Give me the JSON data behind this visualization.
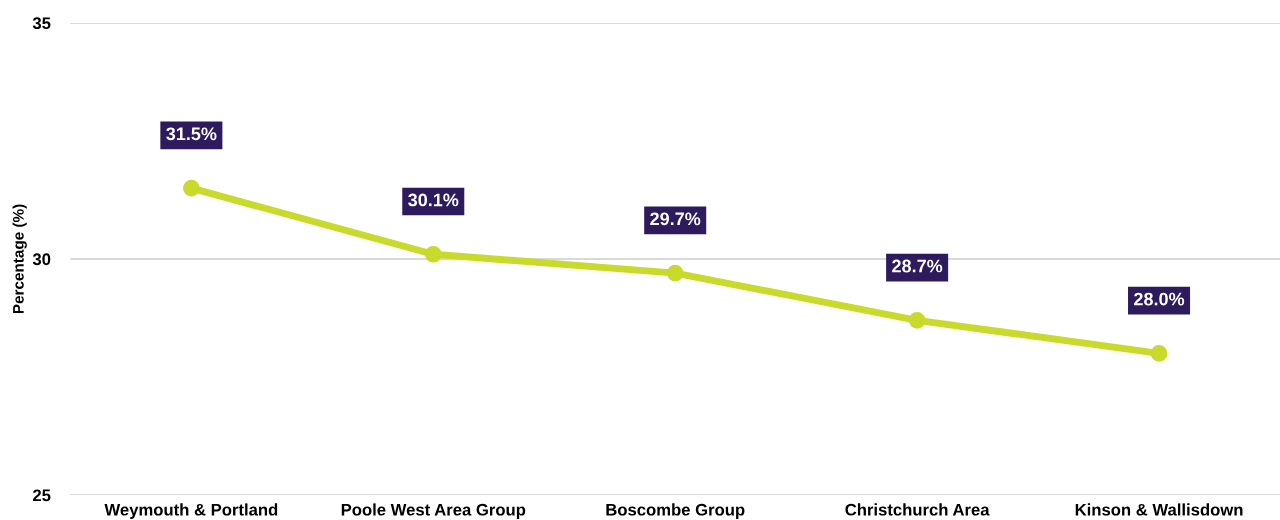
{
  "chart_data": {
    "type": "line",
    "ylabel": "Percentage (%)",
    "categories": [
      "Weymouth & Portland",
      "Poole West Area Group",
      "Boscombe Group",
      "Christchurch Area",
      "Kinson & Wallisdown"
    ],
    "series": [
      {
        "color": "#c8da2b",
        "values": [
          31.5,
          30.1,
          29.7,
          28.7,
          28.0
        ],
        "value_labels": [
          "31.5%",
          "30.1%",
          "29.7%",
          "28.7%",
          "28.0%"
        ]
      }
    ],
    "ylim": [
      25,
      35
    ],
    "yticks": [
      25,
      30,
      35
    ],
    "grid": "y",
    "marker": "circle",
    "line_style": "solid",
    "legend": false
  }
}
